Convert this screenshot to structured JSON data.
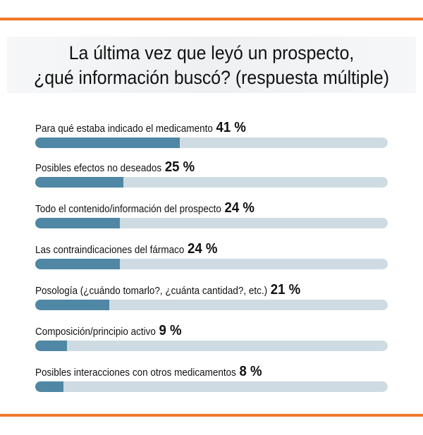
{
  "title_line1": "La última vez que leyó un prospecto,",
  "title_line2": "¿qué información buscó? (respuesta múltiple)",
  "colors": {
    "accent_rule": "#f07a2a",
    "bar_fill": "#4f87a5",
    "bar_track": "#cfdbe2"
  },
  "chart_data": {
    "type": "bar",
    "orientation": "horizontal",
    "title": "La última vez que leyó un prospecto, ¿qué información buscó? (respuesta múltiple)",
    "xlim": [
      0,
      100
    ],
    "grid": false,
    "categories": [
      "Para qué estaba indicado el medicamento",
      "Posibles efectos no deseados",
      "Todo el contenido/información del prospecto",
      "Las contraindicaciones del fármaco",
      "Posología (¿cuándo tomarlo?, ¿cuánta cantidad?, etc.)",
      "Composición/principio activo",
      "Posibles interacciones con otros medicamentos"
    ],
    "values": [
      41,
      25,
      24,
      24,
      21,
      9,
      8
    ],
    "value_labels": [
      "41 %",
      "25 %",
      "24 %",
      "24 %",
      "21 %",
      "9 %",
      "8 %"
    ]
  }
}
